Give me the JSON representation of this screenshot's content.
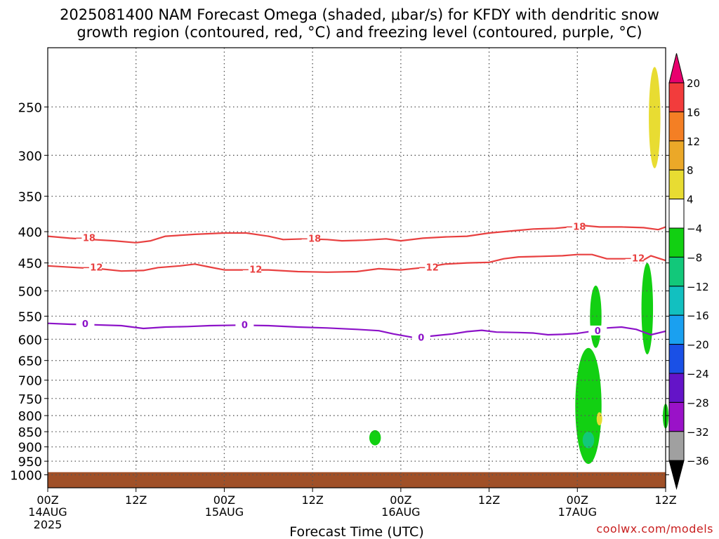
{
  "title_line1": "2025081400 NAM Forecast Omega (shaded, μbar/s) for KFDY with dendritic snow",
  "title_line2": "growth region (contoured, red, °C) and freezing level (contoured, purple, °C)",
  "credit": "coolwx.com/models",
  "chart_data": {
    "type": "heatmap",
    "title": "2025081400 NAM Forecast Omega (shaded, μbar/s) for KFDY with dendritic snow growth region (contoured, red, °C) and freezing level (contoured, purple, °C)",
    "xlabel": "Forecast Time (UTC)",
    "ylabel": "",
    "y_scale": "log-pressure",
    "y_inverted": true,
    "xlim_hours": [
      0,
      84
    ],
    "ylim_hpa": [
      1050,
      200
    ],
    "grid": true,
    "y_ticks": [
      250,
      300,
      350,
      400,
      450,
      500,
      550,
      600,
      650,
      700,
      750,
      800,
      850,
      900,
      950,
      1000
    ],
    "x_ticks": [
      {
        "hour": 0,
        "label": "00Z",
        "sub": "14AUG",
        "sub2": "2025"
      },
      {
        "hour": 12,
        "label": "12Z",
        "sub": "",
        "sub2": ""
      },
      {
        "hour": 24,
        "label": "00Z",
        "sub": "15AUG",
        "sub2": ""
      },
      {
        "hour": 36,
        "label": "12Z",
        "sub": "",
        "sub2": ""
      },
      {
        "hour": 48,
        "label": "00Z",
        "sub": "16AUG",
        "sub2": ""
      },
      {
        "hour": 60,
        "label": "12Z",
        "sub": "",
        "sub2": ""
      },
      {
        "hour": 72,
        "label": "00Z",
        "sub": "17AUG",
        "sub2": ""
      },
      {
        "hour": 84,
        "label": "12Z",
        "sub": "",
        "sub2": ""
      }
    ],
    "colorbar": {
      "ticks": [
        20,
        16,
        12,
        8,
        4,
        -4,
        -8,
        -12,
        -16,
        -20,
        -24,
        -28,
        -32,
        -36
      ],
      "colors": [
        "#e8006e",
        "#f23c3c",
        "#f47f24",
        "#eba828",
        "#e8dc32",
        "#ffffff",
        "#12d012",
        "#12c87a",
        "#12c0c0",
        "#1aa0f0",
        "#1a50e6",
        "#6414c8",
        "#9a12c8",
        "#a0a0a0",
        "#000000"
      ]
    },
    "contours": [
      {
        "name": "-18",
        "color": "#e84040",
        "points": [
          [
            0,
            407
          ],
          [
            3,
            410
          ],
          [
            6,
            412
          ],
          [
            9,
            414
          ],
          [
            12,
            417
          ],
          [
            14,
            414
          ],
          [
            16,
            407
          ],
          [
            20,
            404
          ],
          [
            24,
            402
          ],
          [
            27,
            402
          ],
          [
            30,
            407
          ],
          [
            32,
            412
          ],
          [
            35,
            411
          ],
          [
            38,
            412
          ],
          [
            40,
            414
          ],
          [
            43,
            413
          ],
          [
            46,
            411
          ],
          [
            48,
            414
          ],
          [
            51,
            410
          ],
          [
            54,
            408
          ],
          [
            57,
            407
          ],
          [
            60,
            402
          ],
          [
            63,
            399
          ],
          [
            66,
            396
          ],
          [
            69,
            395
          ],
          [
            71,
            393
          ],
          [
            73,
            391
          ],
          [
            75,
            393
          ],
          [
            78,
            393
          ],
          [
            81,
            394
          ],
          [
            83,
            397
          ],
          [
            84,
            393
          ]
        ]
      },
      {
        "name": "-12",
        "color": "#e84040",
        "points": [
          [
            0,
            455
          ],
          [
            4,
            458
          ],
          [
            7,
            460
          ],
          [
            10,
            464
          ],
          [
            13,
            463
          ],
          [
            15,
            458
          ],
          [
            18,
            455
          ],
          [
            20,
            452
          ],
          [
            22,
            457
          ],
          [
            24,
            462
          ],
          [
            27,
            462
          ],
          [
            30,
            462
          ],
          [
            34,
            465
          ],
          [
            38,
            466
          ],
          [
            42,
            465
          ],
          [
            45,
            460
          ],
          [
            48,
            462
          ],
          [
            51,
            458
          ],
          [
            54,
            452
          ],
          [
            57,
            450
          ],
          [
            60,
            449
          ],
          [
            62,
            443
          ],
          [
            64,
            440
          ],
          [
            67,
            439
          ],
          [
            70,
            438
          ],
          [
            72,
            436
          ],
          [
            74,
            436
          ],
          [
            76,
            443
          ],
          [
            79,
            443
          ],
          [
            81,
            445
          ],
          [
            82,
            438
          ],
          [
            84,
            446
          ]
        ]
      },
      {
        "name": "0",
        "color": "#8c12c8",
        "points": [
          [
            0,
            565
          ],
          [
            3,
            567
          ],
          [
            6,
            568
          ],
          [
            10,
            570
          ],
          [
            13,
            576
          ],
          [
            16,
            573
          ],
          [
            19,
            572
          ],
          [
            22,
            570
          ],
          [
            26,
            569
          ],
          [
            30,
            570
          ],
          [
            34,
            573
          ],
          [
            38,
            575
          ],
          [
            42,
            578
          ],
          [
            45,
            581
          ],
          [
            47,
            588
          ],
          [
            49,
            594
          ],
          [
            50,
            597
          ],
          [
            52,
            593
          ],
          [
            55,
            588
          ],
          [
            57,
            583
          ],
          [
            59,
            580
          ],
          [
            61,
            584
          ],
          [
            64,
            585
          ],
          [
            66,
            586
          ],
          [
            68,
            590
          ],
          [
            70,
            589
          ],
          [
            72,
            587
          ],
          [
            74,
            582
          ],
          [
            76,
            575
          ],
          [
            78,
            573
          ],
          [
            80,
            578
          ],
          [
            82,
            590
          ],
          [
            83,
            586
          ],
          [
            84,
            582
          ]
        ]
      }
    ],
    "shaded_regions": [
      {
        "value": "4 to 8",
        "color": "#e8dc32",
        "hours": [
          82,
          83
        ],
        "pressure_hpa": [
          215,
          315
        ]
      },
      {
        "value": "-4 to -8",
        "color": "#12d012",
        "hours": [
          74,
          75
        ],
        "pressure_hpa": [
          490,
          620
        ]
      },
      {
        "value": "-4 to -8",
        "color": "#12d012",
        "hours": [
          72,
          75
        ],
        "pressure_hpa": [
          620,
          960
        ]
      },
      {
        "value": "-4 to -8",
        "color": "#12d012",
        "hours": [
          81,
          82
        ],
        "pressure_hpa": [
          450,
          635
        ]
      },
      {
        "value": "-4 to -8",
        "color": "#12d012",
        "hours": [
          84,
          84
        ],
        "pressure_hpa": [
          765,
          840
        ]
      },
      {
        "value": "-4 to -8",
        "color": "#12d012",
        "hours": [
          44,
          45
        ],
        "pressure_hpa": [
          845,
          895
        ]
      },
      {
        "value": "4 to 8",
        "color": "#e8dc32",
        "hours": [
          75,
          75
        ],
        "pressure_hpa": [
          790,
          830
        ]
      },
      {
        "value": "-8 to -12",
        "color": "#12c87a",
        "hours": [
          73,
          74
        ],
        "pressure_hpa": [
          850,
          905
        ]
      }
    ],
    "terrain": {
      "color": "#a05028",
      "top_hpa": 990
    }
  }
}
